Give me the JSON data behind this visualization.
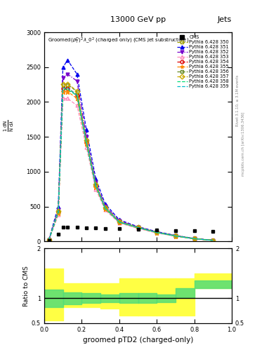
{
  "title_top": "13000 GeV pp",
  "title_right": "Jets",
  "xlabel": "groomed pTD2 (charged-only)",
  "ylabel_ratio": "Ratio to CMS",
  "right_label": "mcplots.cern.ch [arXiv:1306.3436]",
  "right_label2": "Rivet 3.1.10, ≥ 3.1M events",
  "series_labels": [
    "CMS",
    "Pythia 6.428 350",
    "Pythia 6.428 351",
    "Pythia 6.428 352",
    "Pythia 6.428 353",
    "Pythia 6.428 354",
    "Pythia 6.428 355",
    "Pythia 6.428 356",
    "Pythia 6.428 357",
    "Pythia 6.428 358",
    "Pythia 6.428 359"
  ],
  "colors": [
    "black",
    "#999900",
    "#0000ee",
    "#7700cc",
    "#ff88bb",
    "#dd0000",
    "#ff8800",
    "#668822",
    "#ccaa00",
    "#00dd77",
    "#00bbcc"
  ],
  "markers": [
    "s",
    "s",
    "^",
    "v",
    "^",
    "o",
    "*",
    "s",
    "D",
    "none",
    "none"
  ],
  "linestyles": [
    "none",
    "--",
    "--",
    "-.",
    "--",
    "--",
    "--",
    "--",
    "--",
    "--",
    "--"
  ],
  "filleds": [
    true,
    false,
    true,
    true,
    false,
    false,
    true,
    false,
    false,
    false,
    false
  ],
  "x_pts": [
    0.025,
    0.075,
    0.1,
    0.125,
    0.175,
    0.225,
    0.275,
    0.325,
    0.4,
    0.5,
    0.6,
    0.7,
    0.8,
    0.9
  ],
  "cms_x": [
    0.025,
    0.075,
    0.1,
    0.125,
    0.175,
    0.225,
    0.275,
    0.325,
    0.4,
    0.5,
    0.6,
    0.7,
    0.8,
    0.9
  ],
  "cms_y": [
    10,
    100,
    200,
    200,
    200,
    190,
    190,
    185,
    180,
    170,
    160,
    155,
    150,
    140
  ],
  "curve_shapes": [
    [
      20,
      400,
      2200,
      2200,
      2100,
      1450,
      800,
      480,
      280,
      200,
      130,
      80,
      40,
      15
    ],
    [
      25,
      500,
      2500,
      2600,
      2400,
      1600,
      900,
      540,
      310,
      210,
      140,
      85,
      42,
      16
    ],
    [
      22,
      450,
      2350,
      2400,
      2300,
      1500,
      850,
      510,
      295,
      205,
      135,
      82,
      40,
      15
    ],
    [
      18,
      380,
      2050,
      2050,
      1950,
      1350,
      750,
      450,
      265,
      185,
      120,
      74,
      36,
      14
    ],
    [
      20,
      420,
      2200,
      2200,
      2100,
      1420,
      800,
      478,
      278,
      198,
      128,
      78,
      38,
      14
    ],
    [
      19,
      400,
      2150,
      2150,
      2050,
      1400,
      780,
      466,
      272,
      192,
      125,
      76,
      37,
      14
    ],
    [
      21,
      430,
      2250,
      2250,
      2150,
      1450,
      815,
      488,
      284,
      200,
      130,
      79,
      39,
      15
    ],
    [
      21,
      435,
      2260,
      2260,
      2160,
      1455,
      820,
      490,
      286,
      202,
      131,
      80,
      39,
      15
    ],
    [
      20,
      415,
      2180,
      2180,
      2090,
      1410,
      790,
      472,
      275,
      195,
      127,
      77,
      38,
      14
    ],
    [
      20,
      420,
      2200,
      2200,
      2100,
      1420,
      800,
      478,
      278,
      198,
      128,
      78,
      38,
      14
    ]
  ],
  "ratio_x_edges": [
    0.0,
    0.1,
    0.2,
    0.3,
    0.4,
    0.5,
    0.6,
    0.7,
    0.8,
    1.0
  ],
  "yellow_lo": [
    0.55,
    0.82,
    0.82,
    0.8,
    0.65,
    0.65,
    0.65,
    0.65,
    1.2,
    1.2
  ],
  "yellow_hi": [
    1.6,
    1.3,
    1.3,
    1.3,
    1.4,
    1.4,
    1.4,
    1.4,
    1.5,
    1.5
  ],
  "green_lo": [
    0.82,
    0.88,
    0.9,
    0.92,
    0.9,
    0.9,
    0.92,
    1.0,
    1.2,
    1.2
  ],
  "green_hi": [
    1.18,
    1.12,
    1.1,
    1.08,
    1.1,
    1.1,
    1.08,
    1.2,
    1.35,
    1.35
  ],
  "ylim_main": [
    0,
    3000
  ],
  "ylim_ratio": [
    0.5,
    2.0
  ],
  "background_color": "#ffffff"
}
